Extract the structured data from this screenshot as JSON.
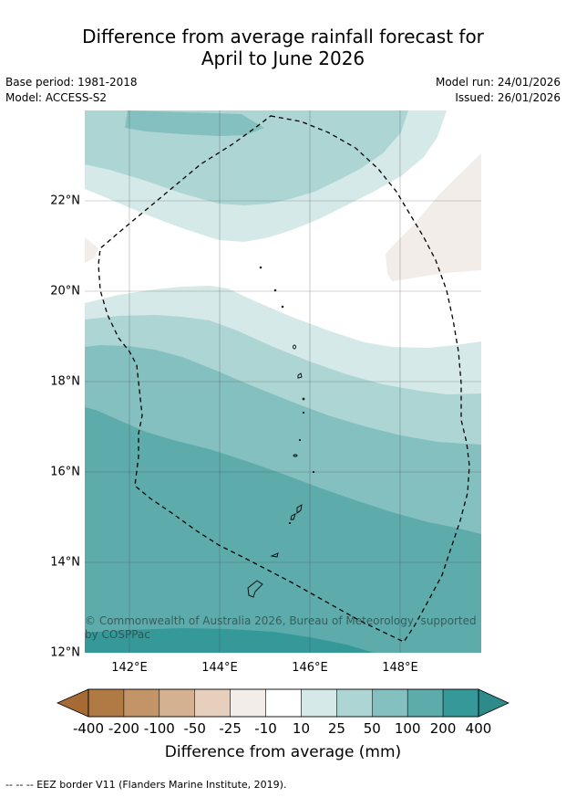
{
  "title_line1": "Difference from average rainfall forecast for",
  "title_line2": "April to June 2026",
  "base_period": "Base period: 1981-2018",
  "model": "Model: ACCESS-S2",
  "model_run": "Model run: 24/01/2026",
  "issued": "Issued: 26/01/2026",
  "copyright_line1": "© Commonwealth of Australia 2026, Bureau of Meteorology, supported",
  "copyright_line2": "by COSPPac",
  "map": {
    "lat_ticks": [
      "22°N",
      "20°N",
      "18°N",
      "16°N",
      "14°N",
      "12°N"
    ],
    "lon_ticks": [
      "142°E",
      "144°E",
      "146°E",
      "148°E"
    ]
  },
  "colorbar": {
    "title": "Difference from average (mm)",
    "labels": [
      "-400",
      "-200",
      "-100",
      "-50",
      "-25",
      "-10",
      "10",
      "25",
      "50",
      "100",
      "200",
      "400"
    ],
    "colors": [
      "#b07a45",
      "#c29468",
      "#d4b190",
      "#e6d0bd",
      "#f2ede8",
      "#ffffff",
      "#d5e9e8",
      "#acd5d4",
      "#84c0bf",
      "#5eabab",
      "#35999a"
    ],
    "extend_low_color": "#a66a35",
    "extend_high_color": "#2e8a8b"
  },
  "footnote": "--  --  -- EEZ border V11 (Flanders Marine Institute, 2019)."
}
